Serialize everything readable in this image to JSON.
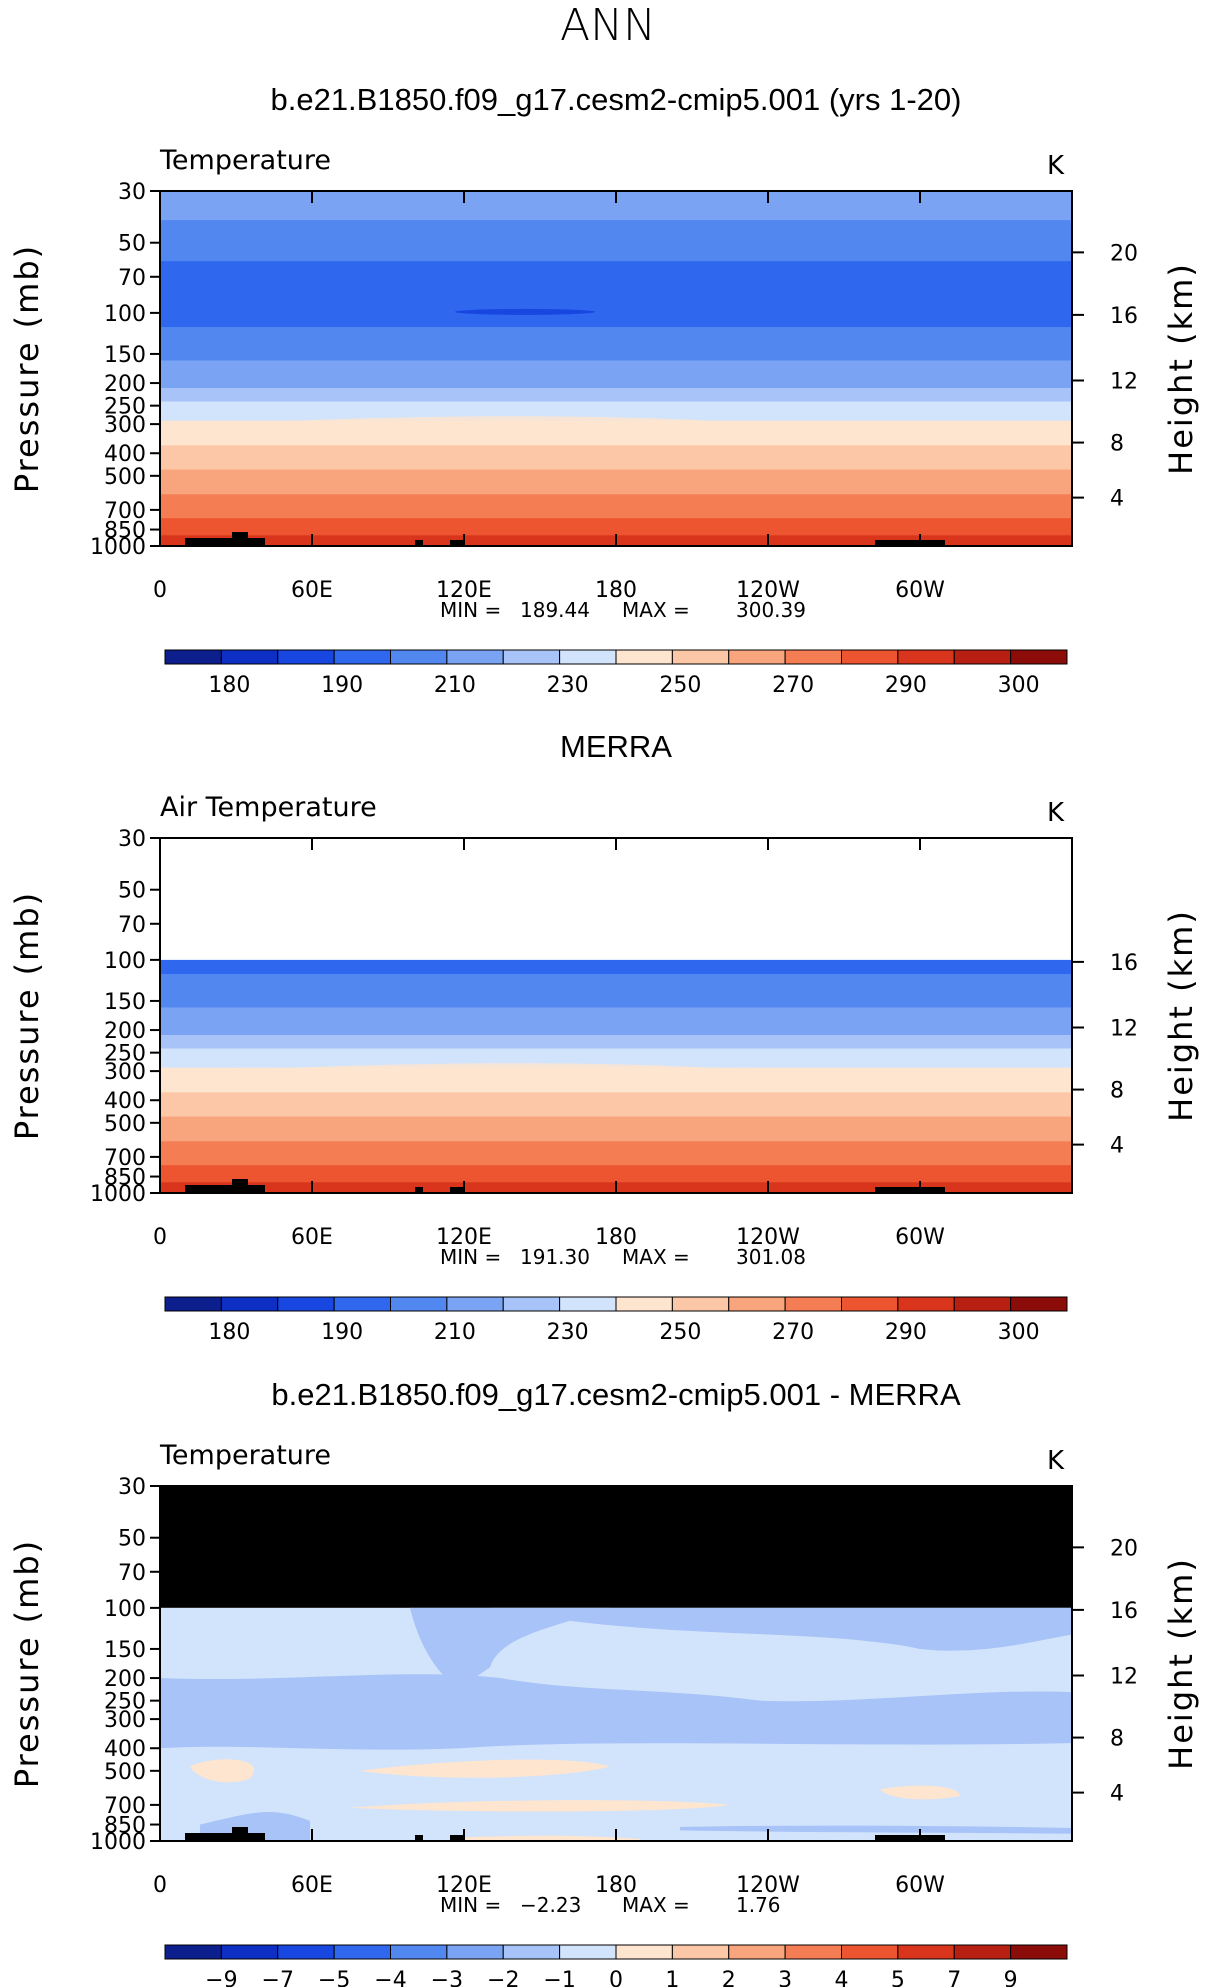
{
  "page_title": "ANN",
  "chart_data": [
    {
      "type": "heatmap",
      "title": "b.e21.B1850.f09_g17.cesm2-cmip5.001 (yrs 1-20)",
      "left_label": "Temperature",
      "units": "K",
      "ylabel": "Pressure (mb)",
      "ylabel_right": "Height (km)",
      "x_ticks": [
        "0",
        "60E",
        "120E",
        "180",
        "120W",
        "60W"
      ],
      "y_ticks": [
        30,
        50,
        70,
        100,
        150,
        200,
        250,
        300,
        400,
        500,
        700,
        850,
        1000
      ],
      "y_ticks_right": [
        20,
        16,
        12,
        8,
        4
      ],
      "ylim": [
        30,
        1000
      ],
      "ytop": 30,
      "min_label": "MIN",
      "min": "189.44",
      "max_label": "MAX",
      "max": "300.39",
      "colorbar_labels": [
        "180",
        "190",
        "210",
        "230",
        "250",
        "270",
        "290",
        "300"
      ]
    },
    {
      "type": "heatmap",
      "title": "MERRA",
      "left_label": "Air Temperature",
      "units": "K",
      "ylabel": "Pressure (mb)",
      "ylabel_right": "Height (km)",
      "x_ticks": [
        "0",
        "60E",
        "120E",
        "180",
        "120W",
        "60W"
      ],
      "y_ticks": [
        30,
        50,
        70,
        100,
        150,
        200,
        250,
        300,
        400,
        500,
        700,
        850,
        1000
      ],
      "y_ticks_right": [
        16,
        12,
        8,
        4
      ],
      "ylim": [
        30,
        1000
      ],
      "ytop": 100,
      "min_label": "MIN",
      "min": "191.30",
      "max_label": "MAX",
      "max": "301.08",
      "colorbar_labels": [
        "180",
        "190",
        "210",
        "230",
        "250",
        "270",
        "290",
        "300"
      ]
    },
    {
      "type": "heatmap",
      "title": "b.e21.B1850.f09_g17.cesm2-cmip5.001 - MERRA",
      "left_label": "Temperature",
      "units": "K",
      "ylabel": "Pressure (mb)",
      "ylabel_right": "Height (km)",
      "x_ticks": [
        "0",
        "60E",
        "120E",
        "180",
        "120W",
        "60W"
      ],
      "y_ticks": [
        30,
        50,
        70,
        100,
        150,
        200,
        250,
        300,
        400,
        500,
        700,
        850,
        1000
      ],
      "y_ticks_right": [
        20,
        16,
        12,
        8,
        4
      ],
      "ylim": [
        30,
        1000
      ],
      "ytop": 100,
      "min_label": "MIN",
      "min": "−2.23",
      "max_label": "MAX",
      "max": "1.76",
      "colorbar_labels": [
        "−9",
        "−7",
        "−5",
        "−4",
        "−3",
        "−2",
        "−1",
        "0",
        "1",
        "2",
        "3",
        "4",
        "5",
        "7",
        "9"
      ]
    }
  ],
  "colors": {
    "temp_scale": [
      "#0c1f8c",
      "#0d2fc4",
      "#1746e0",
      "#2f68ee",
      "#5287f0",
      "#7aa3f3",
      "#a8c3f7",
      "#d2e4fb",
      "#fde5cf",
      "#fbc7a6",
      "#f8a47d",
      "#f47d54",
      "#ec5530",
      "#d8351c",
      "#b71f12",
      "#8b0c08"
    ],
    "diff_scale": [
      "#0c1f8c",
      "#0d2fc4",
      "#1746e0",
      "#2f68ee",
      "#5287f0",
      "#7aa3f3",
      "#a8c3f7",
      "#d2e4fb",
      "#fde5cf",
      "#fbc7a6",
      "#f8a47d",
      "#f47d54",
      "#ec5530",
      "#d8351c",
      "#b71f12",
      "#8b0c08"
    ]
  }
}
